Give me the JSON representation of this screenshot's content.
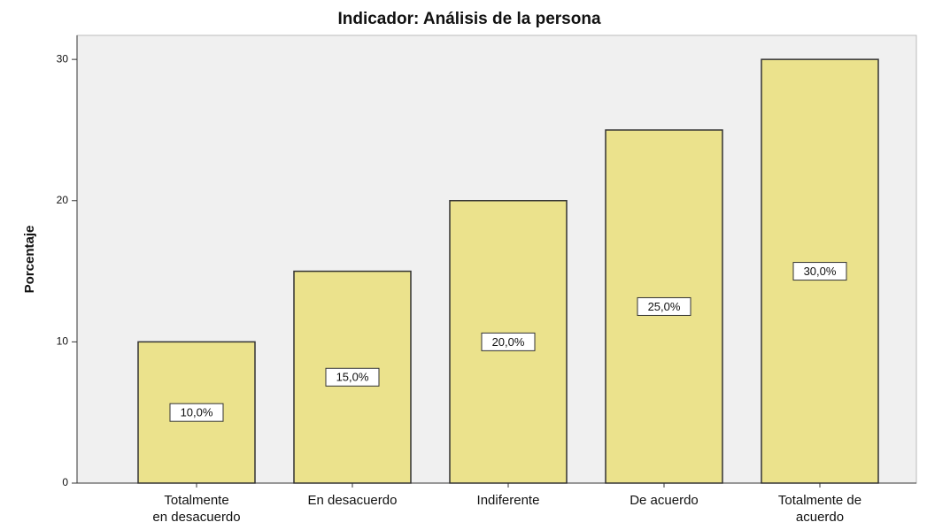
{
  "chart_data": {
    "type": "bar",
    "title": "Indicador: Análisis de la persona",
    "y_label": "Porcentaje",
    "categories": [
      "Totalmente\nen desacuerdo",
      "En desacuerdo",
      "Indiferente",
      "De acuerdo",
      "Totalmente de\nacuerdo"
    ],
    "values": [
      10,
      15,
      20,
      25,
      30
    ],
    "value_labels": [
      "10,0%",
      "15,0%",
      "20,0%",
      "25,0%",
      "30,0%"
    ],
    "color": "#ebe28c",
    "ylim": [
      0,
      31.7
    ],
    "yticks": [
      0,
      10,
      20,
      30
    ],
    "grid": false
  }
}
